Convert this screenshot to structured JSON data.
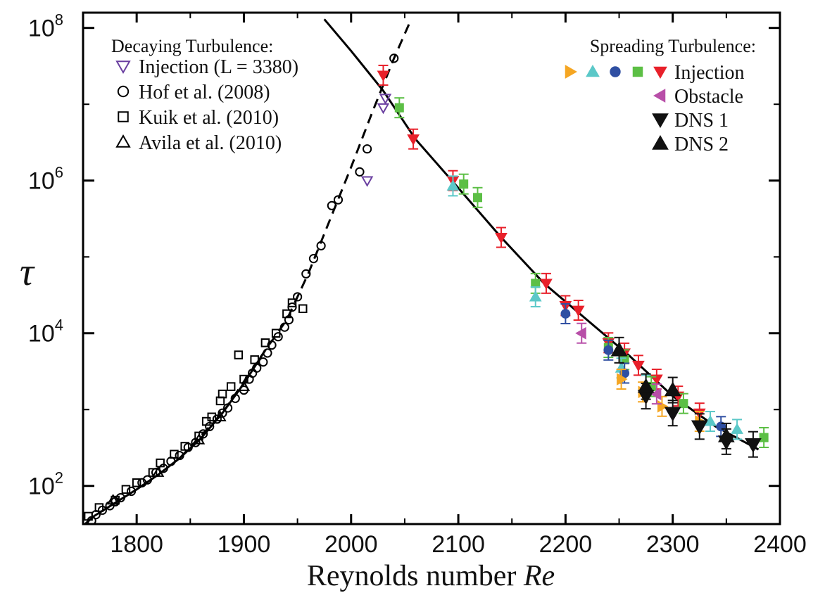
{
  "chart_data": {
    "type": "scatter",
    "xlabel": "Reynolds number",
    "xlabel_italic": "Re",
    "ylabel": "τ",
    "xlim": [
      1750,
      2400
    ],
    "ylim_log10": [
      1.5,
      8.2
    ],
    "log_y": true,
    "x_ticks": [
      {
        "value": 1800,
        "label": "1800"
      },
      {
        "value": 1900,
        "label": "1900"
      },
      {
        "value": 2000,
        "label": "2000"
      },
      {
        "value": 2100,
        "label": "2100"
      },
      {
        "value": 2200,
        "label": "2200"
      },
      {
        "value": 2300,
        "label": "2300"
      },
      {
        "value": 2400,
        "label": "2400"
      }
    ],
    "y_ticks": [
      {
        "exp": 2,
        "label_base": "10",
        "label_exp": "2"
      },
      {
        "exp": 4,
        "label_base": "10",
        "label_exp": "4"
      },
      {
        "exp": 6,
        "label_base": "10",
        "label_exp": "6"
      },
      {
        "exp": 8,
        "label_base": "10",
        "label_exp": "8"
      }
    ],
    "legend_decaying": {
      "title": "Decaying Turbulence:",
      "entries": [
        {
          "label": "Injection (L = 3380)",
          "marker": "open-triangle-down",
          "color": "#6a3fa0"
        },
        {
          "label": "Hof et al. (2008)",
          "marker": "open-circle",
          "color": "#000000"
        },
        {
          "label": "Kuik et al. (2010)",
          "marker": "open-square",
          "color": "#000000"
        },
        {
          "label": "Avila et al. (2010)",
          "marker": "open-triangle-up",
          "color": "#000000"
        }
      ]
    },
    "legend_spreading": {
      "title": "Spreading Turbulence:",
      "entries": [
        {
          "label": "Injection",
          "markers": [
            {
              "marker": "triangle-right",
              "color": "#f5a623"
            },
            {
              "marker": "triangle-up",
              "color": "#5bc8c8"
            },
            {
              "marker": "circle",
              "color": "#2f4fa2"
            },
            {
              "marker": "square",
              "color": "#5cbf45"
            },
            {
              "marker": "triangle-down",
              "color": "#e8202a"
            }
          ]
        },
        {
          "label": "Obstacle",
          "markers": [
            {
              "marker": "triangle-left",
              "color": "#b84fa8"
            }
          ]
        },
        {
          "label": "DNS 1",
          "markers": [
            {
              "marker": "triangle-down",
              "color": "#111111"
            }
          ]
        },
        {
          "label": "DNS 2",
          "markers": [
            {
              "marker": "triangle-up",
              "color": "#111111"
            }
          ]
        }
      ]
    },
    "fit_decay_solid": [
      [
        1750,
        30
      ],
      [
        1760,
        40
      ],
      [
        1780,
        60
      ],
      [
        1800,
        90
      ],
      [
        1820,
        140
      ],
      [
        1840,
        230
      ],
      [
        1860,
        420
      ],
      [
        1880,
        900
      ],
      [
        1900,
        2200
      ],
      [
        1920,
        6000
      ]
    ],
    "fit_decay_dashed": [
      [
        1840,
        230
      ],
      [
        1880,
        900
      ],
      [
        1920,
        6000
      ],
      [
        1940,
        15000
      ],
      [
        1960,
        60000
      ],
      [
        1980,
        300000
      ],
      [
        2000,
        1500000
      ],
      [
        2020,
        8000000
      ],
      [
        2040,
        40000000
      ],
      [
        2055,
        120000000
      ]
    ],
    "fit_spread_solid": [
      [
        1975,
        130000000
      ],
      [
        2000,
        50000000
      ],
      [
        2030,
        15000000
      ],
      [
        2060,
        3500000
      ],
      [
        2100,
        800000
      ],
      [
        2140,
        180000
      ],
      [
        2180,
        45000
      ],
      [
        2220,
        15000
      ],
      [
        2260,
        5000
      ],
      [
        2300,
        1500
      ],
      [
        2340,
        600
      ],
      [
        2380,
        300
      ]
    ],
    "series": [
      {
        "name": "Hof et al. (2008)",
        "marker": "open-circle",
        "color": "#000000",
        "points": [
          [
            1752,
            28
          ],
          [
            1758,
            35
          ],
          [
            1762,
            42
          ],
          [
            1768,
            48
          ],
          [
            1775,
            55
          ],
          [
            1780,
            62
          ],
          [
            1785,
            70
          ],
          [
            1795,
            85
          ],
          [
            1805,
            110
          ],
          [
            1810,
            120
          ],
          [
            1818,
            150
          ],
          [
            1825,
            170
          ],
          [
            1832,
            210
          ],
          [
            1840,
            250
          ],
          [
            1848,
            320
          ],
          [
            1855,
            370
          ],
          [
            1862,
            480
          ],
          [
            1868,
            600
          ],
          [
            1875,
            750
          ],
          [
            1880,
            900
          ],
          [
            1885,
            1050
          ],
          [
            1892,
            1400
          ],
          [
            1900,
            1800
          ],
          [
            1905,
            2500
          ],
          [
            1908,
            3000
          ],
          [
            1912,
            3500
          ],
          [
            1918,
            4200
          ],
          [
            1922,
            5500
          ],
          [
            1926,
            7000
          ],
          [
            1932,
            9000
          ],
          [
            1938,
            12000
          ],
          [
            1942,
            15000
          ],
          [
            1945,
            22000
          ],
          [
            1950,
            30000
          ],
          [
            1958,
            60000
          ],
          [
            1965,
            95000
          ],
          [
            1972,
            140000
          ],
          [
            1982,
            470000
          ],
          [
            1988,
            560000
          ],
          [
            2008,
            1300000
          ],
          [
            2015,
            2600000
          ],
          [
            2040,
            40000000
          ]
        ]
      },
      {
        "name": "Kuik et al. (2010)",
        "marker": "open-square",
        "color": "#000000",
        "points": [
          [
            1755,
            40
          ],
          [
            1765,
            52
          ],
          [
            1780,
            65
          ],
          [
            1790,
            90
          ],
          [
            1800,
            110
          ],
          [
            1815,
            150
          ],
          [
            1822,
            200
          ],
          [
            1835,
            260
          ],
          [
            1845,
            330
          ],
          [
            1858,
            450
          ],
          [
            1865,
            700
          ],
          [
            1870,
            800
          ],
          [
            1878,
            1300
          ],
          [
            1880,
            1600
          ],
          [
            1888,
            2000
          ],
          [
            1895,
            5200
          ],
          [
            1900,
            2500
          ],
          [
            1910,
            4500
          ],
          [
            1920,
            7500
          ],
          [
            1930,
            10000
          ],
          [
            1940,
            18000
          ],
          [
            1945,
            25000
          ],
          [
            1955,
            21000
          ]
        ]
      },
      {
        "name": "Avila et al. (2010)",
        "marker": "open-triangle-up",
        "color": "#000000",
        "points": [
          [
            1778,
            65
          ],
          [
            1820,
            150
          ],
          [
            1858,
            400
          ],
          [
            1878,
            800
          ],
          [
            1900,
            2000
          ]
        ]
      },
      {
        "name": "Injection (L = 3380)",
        "marker": "open-triangle-down",
        "color": "#6a3fa0",
        "points": [
          [
            2015,
            1000000
          ],
          [
            2030,
            9000000
          ],
          [
            2032,
            12000000
          ]
        ]
      },
      {
        "name": "Spreading Injection (red)",
        "marker": "triangle-down",
        "color": "#e8202a",
        "points": [
          [
            2030,
            24000000
          ],
          [
            2058,
            3500000
          ],
          [
            2095,
            1000000
          ],
          [
            2140,
            180000
          ],
          [
            2182,
            45000
          ],
          [
            2200,
            23000
          ],
          [
            2212,
            20000
          ],
          [
            2240,
            7500
          ],
          [
            2255,
            5500
          ],
          [
            2268,
            3800
          ],
          [
            2285,
            2500
          ],
          [
            2305,
            1500
          ],
          [
            2325,
            900
          ]
        ]
      },
      {
        "name": "Spreading Injection (green)",
        "marker": "square",
        "color": "#5cbf45",
        "points": [
          [
            2045,
            9000000
          ],
          [
            2105,
            900000
          ],
          [
            2118,
            600000
          ],
          [
            2172,
            45000
          ],
          [
            2240,
            6500
          ],
          [
            2255,
            4500
          ],
          [
            2280,
            2000
          ],
          [
            2310,
            1200
          ],
          [
            2385,
            430
          ]
        ]
      },
      {
        "name": "Spreading Injection (cyan)",
        "marker": "triangle-up",
        "color": "#5bc8c8",
        "points": [
          [
            2095,
            850000
          ],
          [
            2172,
            30000
          ],
          [
            2252,
            3500
          ],
          [
            2275,
            2100
          ],
          [
            2335,
            700
          ],
          [
            2360,
            550
          ]
        ]
      },
      {
        "name": "Spreading Injection (blue)",
        "marker": "circle",
        "color": "#2f4fa2",
        "points": [
          [
            2200,
            18000
          ],
          [
            2240,
            6000
          ],
          [
            2255,
            3000
          ],
          [
            2345,
            600
          ]
        ]
      },
      {
        "name": "Spreading Injection (orange)",
        "marker": "triangle-right",
        "color": "#f5a623",
        "points": [
          [
            2252,
            2500
          ],
          [
            2272,
            1700
          ],
          [
            2290,
            1100
          ],
          [
            2325,
            700
          ]
        ]
      },
      {
        "name": "Obstacle",
        "marker": "triangle-left",
        "color": "#b84fa8",
        "points": [
          [
            2215,
            10000
          ],
          [
            2285,
            1600
          ]
        ]
      },
      {
        "name": "DNS 1",
        "marker": "triangle-down",
        "color": "#111111",
        "points": [
          [
            2275,
            1500
          ],
          [
            2300,
            900
          ],
          [
            2325,
            600
          ],
          [
            2350,
            380
          ],
          [
            2375,
            350
          ]
        ]
      },
      {
        "name": "DNS 2",
        "marker": "triangle-up",
        "color": "#111111",
        "points": [
          [
            2250,
            6000
          ],
          [
            2275,
            2000
          ],
          [
            2300,
            1800
          ],
          [
            2350,
            450
          ]
        ]
      }
    ]
  }
}
